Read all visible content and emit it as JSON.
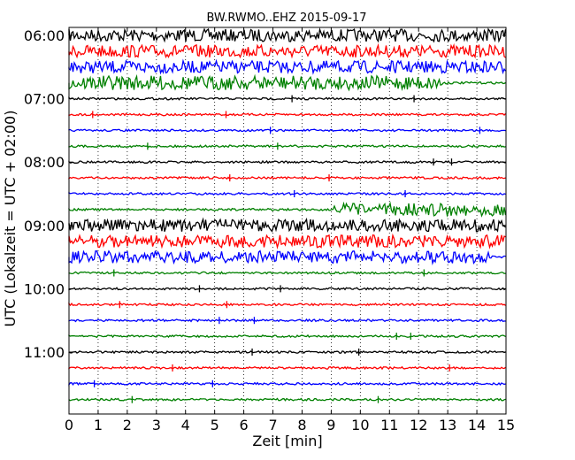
{
  "chart_data": {
    "type": "line",
    "title": "BW.RWMO..EHZ 2015-09-17",
    "xlabel": "Zeit  [min]",
    "ylabel": "UTC (Lokalzeit = UTC + 02:00)",
    "xlim": [
      0,
      15
    ],
    "x_ticks": [
      0,
      1,
      2,
      3,
      4,
      5,
      6,
      7,
      8,
      9,
      10,
      11,
      12,
      13,
      14,
      15
    ],
    "x_grid": true,
    "y_ticks": [
      "06:00",
      "07:00",
      "08:00",
      "09:00",
      "10:00",
      "11:00"
    ],
    "row_interval_minutes": 15,
    "colors": [
      "#000000",
      "#ff0000",
      "#0000ff",
      "#008000"
    ],
    "traces": [
      {
        "start": "06:00",
        "color": "#000000"
      },
      {
        "start": "06:15",
        "color": "#ff0000"
      },
      {
        "start": "06:30",
        "color": "#0000ff"
      },
      {
        "start": "06:45",
        "color": "#008000"
      },
      {
        "start": "07:00",
        "color": "#000000"
      },
      {
        "start": "07:15",
        "color": "#ff0000"
      },
      {
        "start": "07:30",
        "color": "#0000ff"
      },
      {
        "start": "07:45",
        "color": "#008000"
      },
      {
        "start": "08:00",
        "color": "#000000"
      },
      {
        "start": "08:15",
        "color": "#ff0000"
      },
      {
        "start": "08:30",
        "color": "#0000ff"
      },
      {
        "start": "08:45",
        "color": "#008000"
      },
      {
        "start": "09:00",
        "color": "#000000"
      },
      {
        "start": "09:15",
        "color": "#ff0000"
      },
      {
        "start": "09:30",
        "color": "#0000ff"
      },
      {
        "start": "09:45",
        "color": "#008000"
      },
      {
        "start": "10:00",
        "color": "#000000"
      },
      {
        "start": "10:15",
        "color": "#ff0000"
      },
      {
        "start": "10:30",
        "color": "#0000ff"
      },
      {
        "start": "10:45",
        "color": "#008000"
      },
      {
        "start": "11:00",
        "color": "#000000"
      },
      {
        "start": "11:15",
        "color": "#ff0000"
      },
      {
        "start": "11:30",
        "color": "#0000ff"
      },
      {
        "start": "11:45",
        "color": "#008000"
      }
    ]
  }
}
